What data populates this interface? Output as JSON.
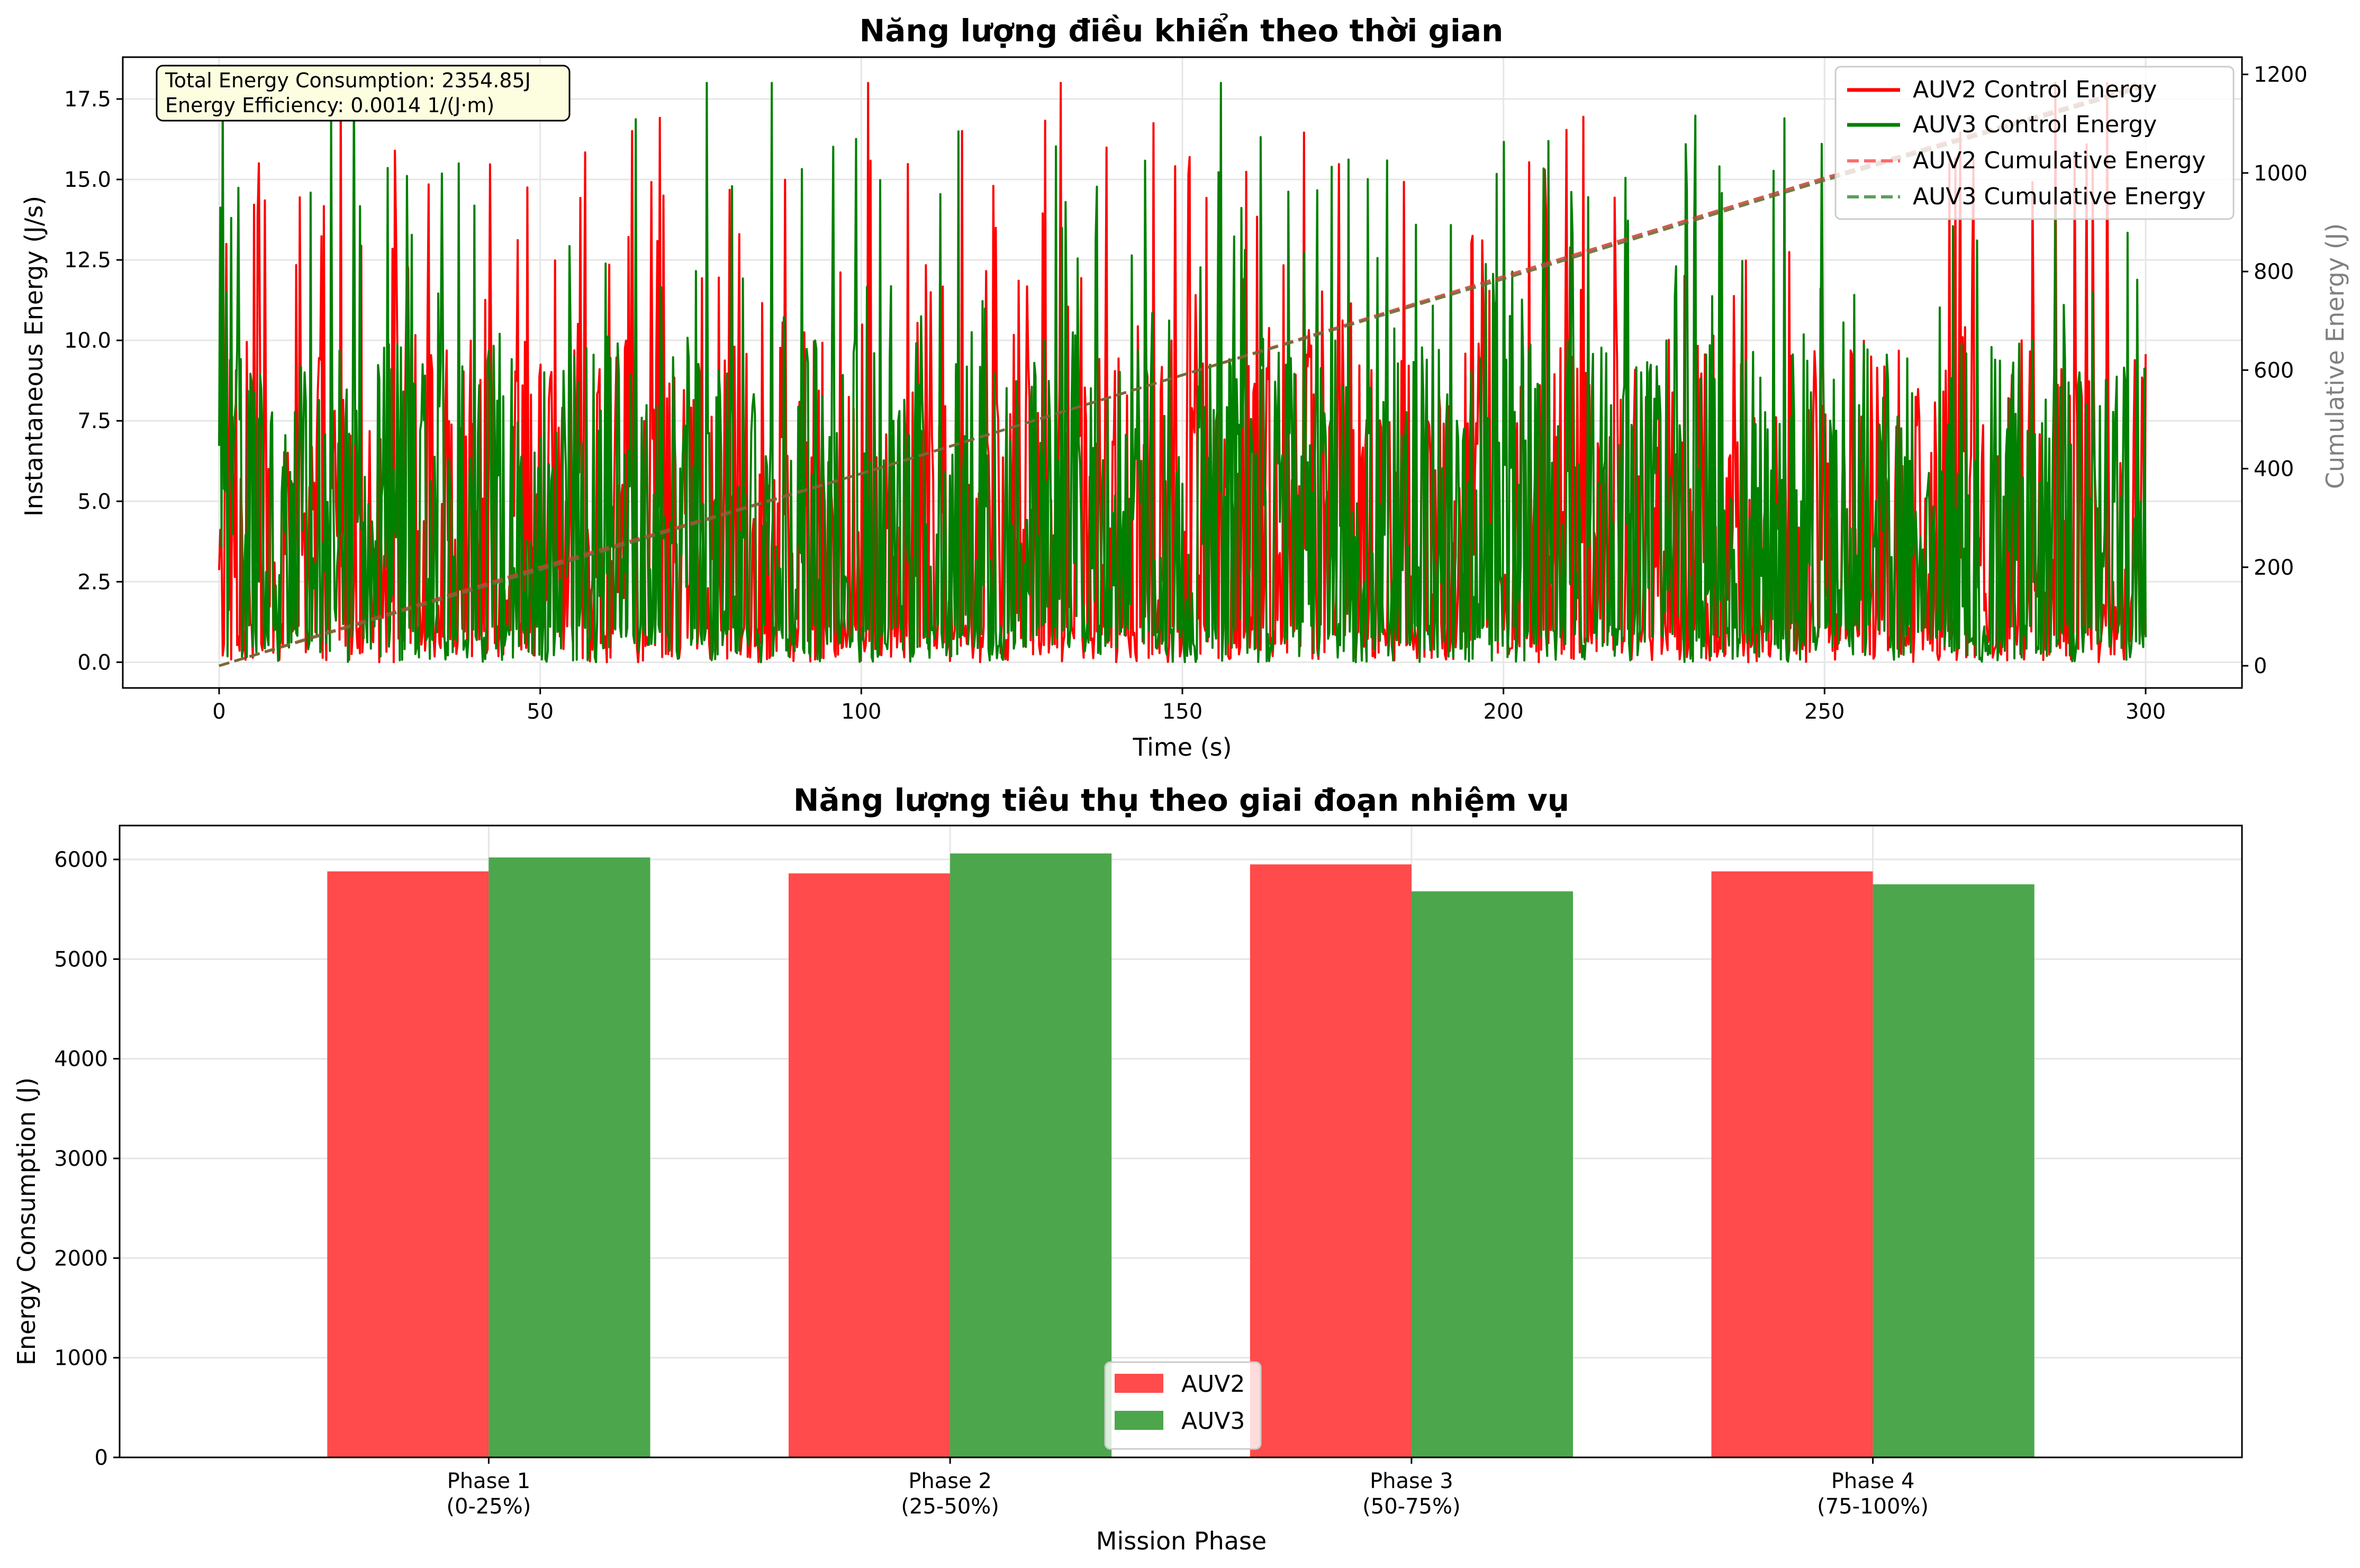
{
  "colors": {
    "auv2": "#ff0000",
    "auv3": "#008000",
    "auv2_bar": "#ff4b4b",
    "auv3_bar": "#4ca64c",
    "cumulative": "#6b6b3a",
    "annotation_bg": "#fdfde0",
    "grid": "#e6e6e6"
  },
  "chart_data": [
    {
      "type": "line",
      "title": "Năng lượng điều khiển theo thời gian",
      "xlabel": "Time (s)",
      "ylabel": "Instantaneous Energy (J/s)",
      "y2label": "Cumulative Energy (J)",
      "xlim": [
        -15,
        315
      ],
      "ylim": [
        -0.8,
        18.8
      ],
      "y2lim": [
        -45,
        1235
      ],
      "xticks": [
        0,
        50,
        100,
        150,
        200,
        250,
        300
      ],
      "yticks": [
        0.0,
        2.5,
        5.0,
        7.5,
        10.0,
        12.5,
        15.0,
        17.5
      ],
      "y2ticks": [
        0,
        200,
        400,
        600,
        800,
        1000,
        1200
      ],
      "grid": true,
      "legend_position": "top-right",
      "annotation": [
        "Total Energy Consumption: 2354.85J",
        "Energy Efficiency: 0.0014 1/(J·m)"
      ],
      "series": [
        {
          "name": "AUV2 Control Energy",
          "axis": "left",
          "style": "solid",
          "x_range": [
            0,
            300
          ],
          "typical_range": [
            0,
            10
          ],
          "peaks": [
            {
              "x": 19,
              "y": 18.0
            },
            {
              "x": 101,
              "y": 18.0
            },
            {
              "x": 131,
              "y": 18.0
            },
            {
              "x": 286,
              "y": 18.0
            },
            {
              "x": 294,
              "y": 18.0
            }
          ]
        },
        {
          "name": "AUV3 Control Energy",
          "axis": "left",
          "style": "solid",
          "x_range": [
            0,
            300
          ],
          "typical_range": [
            0,
            10
          ],
          "peaks": [
            {
              "x": 0.5,
              "y": 18.0
            },
            {
              "x": 21,
              "y": 18.0
            },
            {
              "x": 76,
              "y": 18.0
            },
            {
              "x": 86,
              "y": 18.0
            },
            {
              "x": 156,
              "y": 18.0
            }
          ]
        },
        {
          "name": "AUV2 Cumulative Energy",
          "axis": "right",
          "style": "dashed",
          "x": [
            0,
            50,
            100,
            150,
            200,
            250,
            300
          ],
          "y": [
            0,
            200,
            390,
            590,
            790,
            990,
            1180
          ]
        },
        {
          "name": "AUV3 Cumulative Energy",
          "axis": "right",
          "style": "dashed",
          "x": [
            0,
            50,
            100,
            150,
            200,
            250,
            300
          ],
          "y": [
            0,
            195,
            390,
            590,
            785,
            985,
            1175
          ]
        }
      ]
    },
    {
      "type": "bar",
      "title": "Năng lượng tiêu thụ theo giai đoạn nhiệm vụ",
      "xlabel": "Mission Phase",
      "ylabel": "Energy Consumption (J)",
      "ylim": [
        0,
        6340
      ],
      "yticks": [
        0,
        1000,
        2000,
        3000,
        4000,
        5000,
        6000
      ],
      "grid": true,
      "legend_position": "bottom-center",
      "categories": [
        [
          "Phase 1",
          "(0-25%)"
        ],
        [
          "Phase 2",
          "(25-50%)"
        ],
        [
          "Phase 3",
          "(50-75%)"
        ],
        [
          "Phase 4",
          "(75-100%)"
        ]
      ],
      "series": [
        {
          "name": "AUV2",
          "values": [
            5880,
            5860,
            5950,
            5880
          ]
        },
        {
          "name": "AUV3",
          "values": [
            6020,
            6060,
            5680,
            5750
          ]
        }
      ]
    }
  ]
}
